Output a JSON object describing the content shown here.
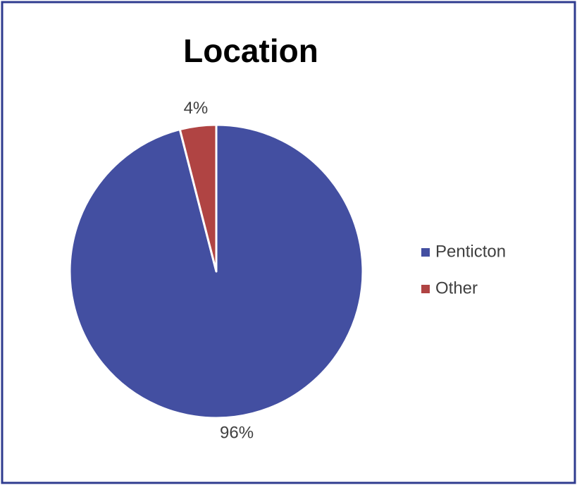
{
  "chart_data": {
    "type": "pie",
    "title": "Location",
    "categories": [
      "Penticton",
      "Other"
    ],
    "values": [
      96,
      4
    ],
    "value_labels": [
      "96%",
      "4%"
    ],
    "colors": [
      "#434fa1",
      "#b04443"
    ],
    "legend": "right"
  }
}
